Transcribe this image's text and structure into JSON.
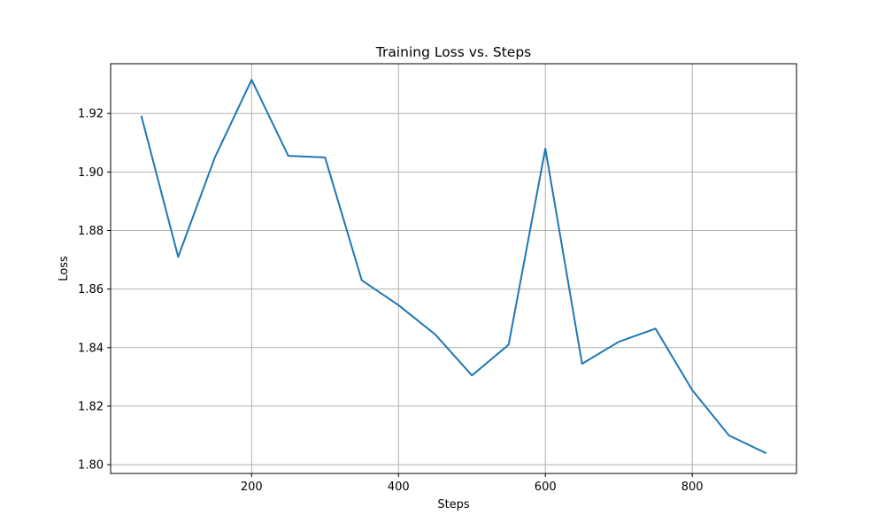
{
  "chart_data": {
    "type": "line",
    "title": "Training Loss vs. Steps",
    "xlabel": "Steps",
    "ylabel": "Loss",
    "xlim": [
      8,
      942
    ],
    "ylim": [
      1.797,
      1.937
    ],
    "xticks": [
      200,
      400,
      600,
      800
    ],
    "xtick_labels": [
      "200",
      "400",
      "600",
      "800"
    ],
    "yticks": [
      1.8,
      1.82,
      1.84,
      1.86,
      1.88,
      1.9,
      1.92
    ],
    "ytick_labels": [
      "1.80",
      "1.82",
      "1.84",
      "1.86",
      "1.88",
      "1.90",
      "1.92"
    ],
    "grid": true,
    "series": [
      {
        "color": "#1f77b4",
        "x": [
          50,
          100,
          150,
          200,
          250,
          300,
          350,
          400,
          450,
          500,
          550,
          600,
          650,
          700,
          750,
          800,
          850,
          900
        ],
        "y": [
          1.919,
          1.871,
          1.905,
          1.9315,
          1.9055,
          1.905,
          1.863,
          1.8545,
          1.8445,
          1.8305,
          1.841,
          1.908,
          1.8345,
          1.842,
          1.8465,
          1.8255,
          1.81,
          1.804
        ]
      }
    ]
  }
}
